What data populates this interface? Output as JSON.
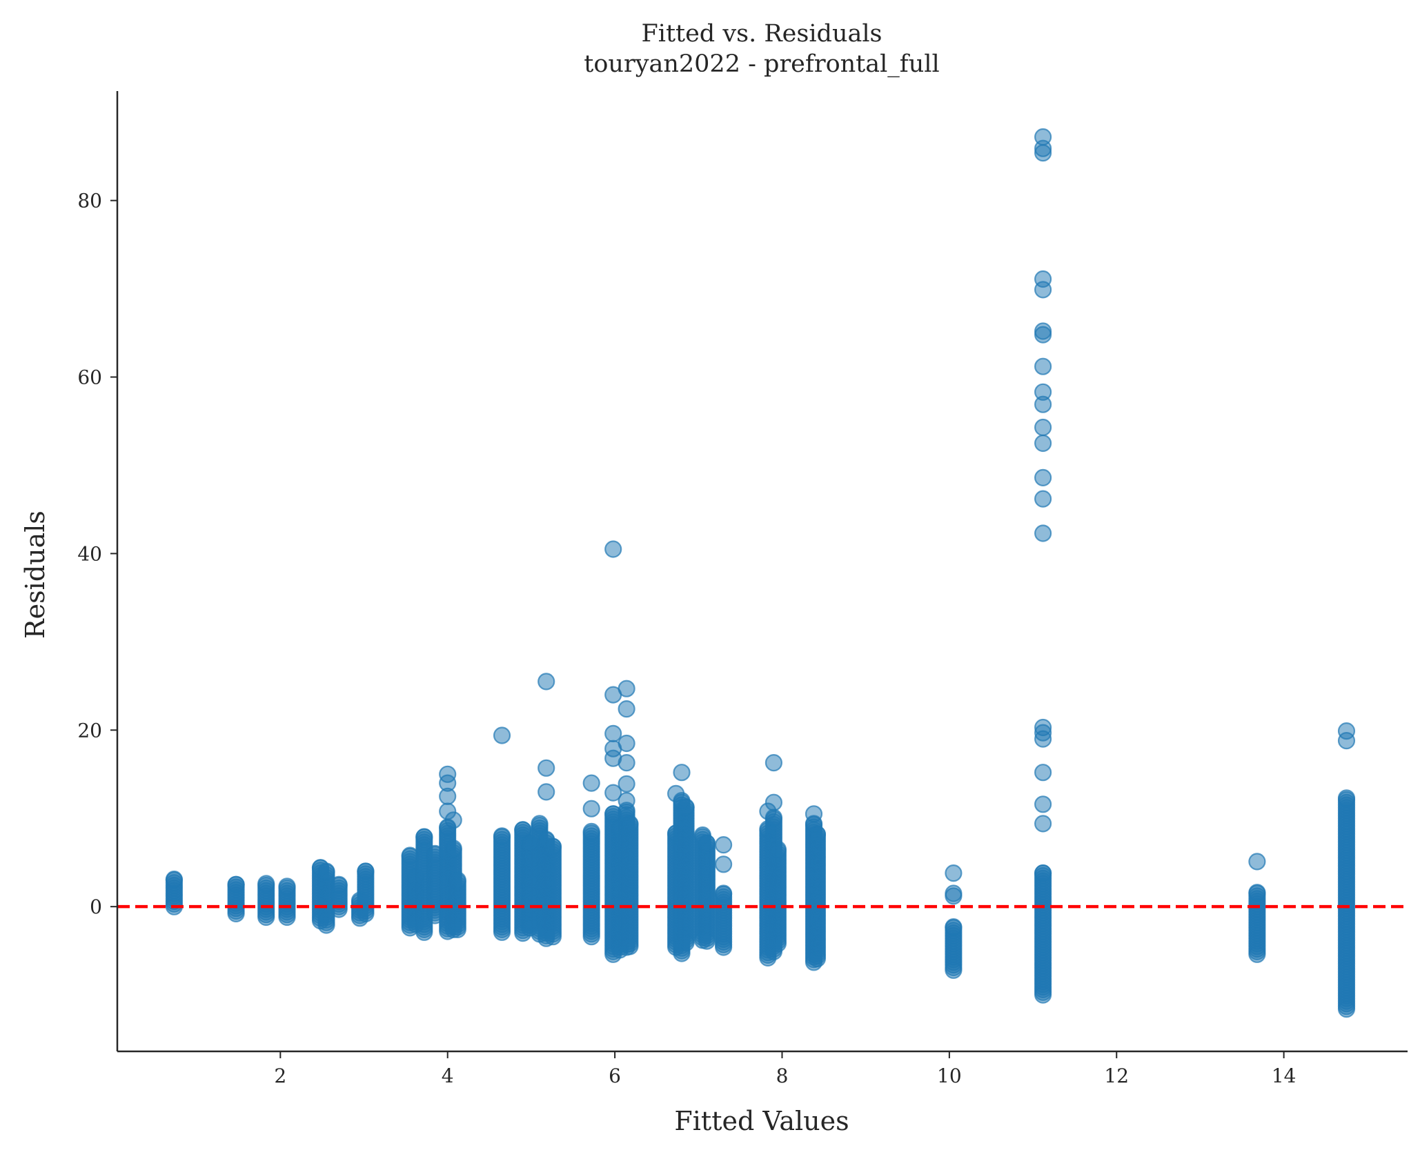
{
  "chart_data": {
    "type": "scatter",
    "title": "Fitted vs. Residuals",
    "subtitle": "touryan2022 - prefrontal_full",
    "xlabel": "Fitted Values",
    "ylabel": "Residuals",
    "xlim": [
      0.05,
      15.48
    ],
    "ylim": [
      -16.4,
      92.4
    ],
    "xticks": [
      2,
      4,
      6,
      8,
      10,
      12,
      14
    ],
    "yticks": [
      0,
      20,
      40,
      60,
      80
    ],
    "grid": false,
    "reference_line": {
      "y": 0,
      "style": "dashed",
      "color": "#ff0000"
    },
    "point_color": "#1f77b4",
    "point_alpha": 0.5,
    "columns": [
      {
        "x": 0.73,
        "ymin": 0.0,
        "ymax": 3.1,
        "extra": []
      },
      {
        "x": 1.47,
        "ymin": -0.8,
        "ymax": 2.5,
        "extra": []
      },
      {
        "x": 1.83,
        "ymin": -1.2,
        "ymax": 2.6,
        "extra": []
      },
      {
        "x": 2.08,
        "ymin": -1.2,
        "ymax": 2.3,
        "extra": []
      },
      {
        "x": 2.48,
        "ymin": -1.6,
        "ymax": 4.4,
        "extra": []
      },
      {
        "x": 2.55,
        "ymin": -2.1,
        "ymax": 4.0,
        "extra": []
      },
      {
        "x": 2.7,
        "ymin": -0.3,
        "ymax": 2.5,
        "extra": []
      },
      {
        "x": 2.95,
        "ymin": -1.3,
        "ymax": 0.7,
        "extra": []
      },
      {
        "x": 3.02,
        "ymin": -0.8,
        "ymax": 4.0,
        "extra": []
      },
      {
        "x": 3.55,
        "ymin": -2.4,
        "ymax": 5.8,
        "extra": []
      },
      {
        "x": 3.62,
        "ymin": -2.0,
        "ymax": 3.4,
        "extra": []
      },
      {
        "x": 3.72,
        "ymin": -2.9,
        "ymax": 7.9,
        "extra": []
      },
      {
        "x": 3.85,
        "ymin": -1.0,
        "ymax": 6.0,
        "extra": []
      },
      {
        "x": 4.0,
        "ymin": -2.8,
        "ymax": 9.0,
        "extra": [
          10.8,
          12.5,
          14.0,
          15.0
        ]
      },
      {
        "x": 4.07,
        "ymin": -2.6,
        "ymax": 6.6,
        "extra": [
          9.8
        ]
      },
      {
        "x": 4.12,
        "ymin": -2.6,
        "ymax": 3.0,
        "extra": []
      },
      {
        "x": 4.65,
        "ymin": -2.9,
        "ymax": 8.0,
        "extra": [
          19.4
        ]
      },
      {
        "x": 4.9,
        "ymin": -3.0,
        "ymax": 8.7,
        "extra": []
      },
      {
        "x": 4.98,
        "ymin": -2.4,
        "ymax": 7.2,
        "extra": []
      },
      {
        "x": 5.1,
        "ymin": -3.1,
        "ymax": 9.4,
        "extra": []
      },
      {
        "x": 5.18,
        "ymin": -3.6,
        "ymax": 7.6,
        "extra": [
          13.0,
          15.7,
          25.5
        ]
      },
      {
        "x": 5.26,
        "ymin": -3.4,
        "ymax": 6.8,
        "extra": []
      },
      {
        "x": 5.72,
        "ymin": -3.4,
        "ymax": 8.5,
        "extra": [
          11.1,
          14.0
        ]
      },
      {
        "x": 5.98,
        "ymin": -5.4,
        "ymax": 10.5,
        "extra": [
          12.9,
          16.8,
          17.9,
          19.6,
          24.0,
          40.5
        ]
      },
      {
        "x": 6.06,
        "ymin": -4.9,
        "ymax": 9.0,
        "extra": []
      },
      {
        "x": 6.14,
        "ymin": -4.6,
        "ymax": 10.9,
        "extra": [
          12.0,
          13.9,
          16.3,
          18.5,
          22.4,
          24.7
        ]
      },
      {
        "x": 6.18,
        "ymin": -4.5,
        "ymax": 9.4,
        "extra": []
      },
      {
        "x": 6.73,
        "ymin": -4.6,
        "ymax": 8.3,
        "extra": [
          12.8
        ]
      },
      {
        "x": 6.8,
        "ymin": -5.3,
        "ymax": 12.0,
        "extra": [
          15.2
        ]
      },
      {
        "x": 6.85,
        "ymin": -4.1,
        "ymax": 11.3,
        "extra": []
      },
      {
        "x": 7.05,
        "ymin": -3.8,
        "ymax": 8.1,
        "extra": []
      },
      {
        "x": 7.1,
        "ymin": -3.9,
        "ymax": 7.2,
        "extra": []
      },
      {
        "x": 7.3,
        "ymin": -4.6,
        "ymax": 1.5,
        "extra": [
          4.8,
          7.0
        ]
      },
      {
        "x": 7.83,
        "ymin": -5.8,
        "ymax": 8.8,
        "extra": [
          10.8
        ]
      },
      {
        "x": 7.9,
        "ymin": -5.1,
        "ymax": 10.1,
        "extra": [
          11.8,
          16.3
        ]
      },
      {
        "x": 7.95,
        "ymin": -4.2,
        "ymax": 6.5,
        "extra": []
      },
      {
        "x": 8.38,
        "ymin": -6.3,
        "ymax": 9.4,
        "extra": [
          10.5
        ]
      },
      {
        "x": 8.42,
        "ymin": -5.9,
        "ymax": 8.2,
        "extra": []
      },
      {
        "x": 10.05,
        "ymin": -7.2,
        "ymax": -2.3,
        "extra": [
          1.2,
          1.5,
          3.8
        ]
      },
      {
        "x": 11.12,
        "ymin": -10.0,
        "ymax": 3.8,
        "extra": [
          9.4,
          11.6,
          15.2,
          19.0,
          19.7,
          20.3,
          42.3,
          46.2,
          48.6,
          52.5,
          54.3,
          56.9,
          58.3,
          61.2,
          64.8,
          65.2,
          69.9,
          71.1,
          85.4,
          85.9,
          87.2
        ]
      },
      {
        "x": 13.68,
        "ymin": -5.4,
        "ymax": 1.6,
        "extra": [
          5.1
        ]
      },
      {
        "x": 14.75,
        "ymin": -11.6,
        "ymax": 12.3,
        "extra": [
          18.8,
          19.9
        ]
      }
    ]
  }
}
